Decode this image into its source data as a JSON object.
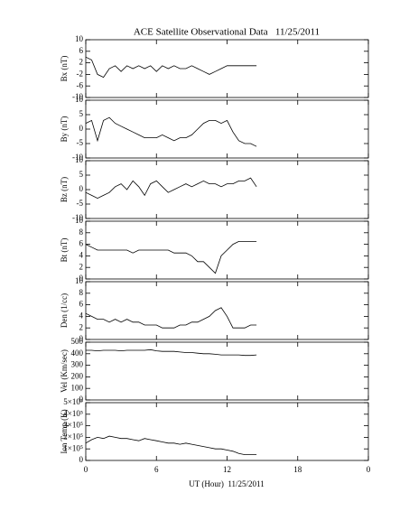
{
  "chart_data": {
    "type": "line",
    "title": "ACE Satellite Observational Data   11/25/2011",
    "xlabel": "UT (Hour)  11/25/2011",
    "color": "#000000",
    "x": [
      0,
      0.5,
      1,
      1.5,
      2,
      2.5,
      3,
      3.5,
      4,
      4.5,
      5,
      5.5,
      6,
      6.5,
      7,
      7.5,
      8,
      8.5,
      9,
      9.5,
      10,
      10.5,
      11,
      11.5,
      12,
      12.5,
      13,
      13.5,
      14,
      14.5
    ],
    "xlim": [
      0,
      24
    ],
    "xticks": [
      0,
      6,
      12,
      18,
      {
        "value": 24,
        "label": "0"
      }
    ],
    "panels": [
      {
        "ylabel": "Bx (nT)",
        "ylim": [
          -10,
          10
        ],
        "yticks": [
          -10,
          -6,
          -2,
          2,
          6,
          10
        ],
        "values": [
          4,
          3,
          -2,
          -3,
          0,
          1,
          -1,
          1,
          0,
          1,
          0,
          1,
          -1,
          1,
          0,
          1,
          0,
          0,
          1,
          0,
          -1,
          -2,
          -1,
          0,
          1,
          1,
          1,
          1,
          1,
          1
        ]
      },
      {
        "ylabel": "By (nT)",
        "ylim": [
          -10,
          10
        ],
        "yticks": [
          -10,
          -5,
          0,
          5,
          10
        ],
        "values": [
          2,
          3,
          -4,
          3,
          4,
          2,
          1,
          0,
          -1,
          -2,
          -3,
          -3,
          -3,
          -2,
          -3,
          -4,
          -3,
          -3,
          -2,
          0,
          2,
          3,
          3,
          2,
          3,
          -1,
          -4,
          -5,
          -5,
          -6
        ]
      },
      {
        "ylabel": "Bz (nT)",
        "ylim": [
          -10,
          10
        ],
        "yticks": [
          -10,
          -5,
          0,
          5,
          10
        ],
        "values": [
          -1,
          -2,
          -3,
          -2,
          -1,
          1,
          2,
          0,
          3,
          1,
          -2,
          2,
          3,
          1,
          -1,
          0,
          1,
          2,
          1,
          2,
          3,
          2,
          2,
          1,
          2,
          2,
          3,
          3,
          4,
          1
        ]
      },
      {
        "ylabel": "Bt (nT)",
        "ylim": [
          0,
          10
        ],
        "yticks": [
          0,
          2,
          4,
          6,
          8,
          10
        ],
        "values": [
          6,
          5.5,
          5,
          5,
          5,
          5,
          5,
          5,
          4.5,
          5,
          5,
          5,
          5,
          5,
          5,
          4.5,
          4.5,
          4.5,
          4,
          3,
          3,
          2,
          1,
          4,
          5,
          6,
          6.5,
          6.5,
          6.5,
          6.5
        ]
      },
      {
        "ylabel": "Den (1/cc)",
        "ylim": [
          0,
          10
        ],
        "yticks": [
          0,
          2,
          4,
          6,
          8,
          10
        ],
        "values": [
          4.5,
          4,
          3.5,
          3.5,
          3,
          3.5,
          3,
          3.5,
          3,
          3,
          2.5,
          2.5,
          2.5,
          2,
          2,
          2,
          2.5,
          2.5,
          3,
          3,
          3.5,
          4,
          5,
          5.5,
          4,
          2,
          2,
          2,
          2.5,
          2.5
        ]
      },
      {
        "ylabel": "Vel (Km/sec)",
        "ylim": [
          0,
          500
        ],
        "yticks": [
          0,
          100,
          200,
          300,
          400,
          500
        ],
        "values": [
          430,
          430,
          425,
          430,
          430,
          430,
          425,
          430,
          430,
          430,
          430,
          435,
          425,
          420,
          420,
          420,
          415,
          410,
          410,
          405,
          400,
          400,
          395,
          390,
          390,
          390,
          390,
          385,
          385,
          390
        ]
      },
      {
        "ylabel": "Ion Temp (K)",
        "ylim": [
          0,
          500000
        ],
        "yticks": [
          0,
          {
            "value": 100000,
            "label": "1×10⁵"
          },
          {
            "value": 200000,
            "label": "2×10⁵"
          },
          {
            "value": 300000,
            "label": "3×10⁵"
          },
          {
            "value": 400000,
            "label": "4×10⁵"
          },
          {
            "value": 500000,
            "label": "5×10⁵"
          }
        ],
        "values": [
          150000,
          180000,
          200000,
          190000,
          210000,
          200000,
          190000,
          190000,
          180000,
          170000,
          190000,
          180000,
          170000,
          160000,
          150000,
          150000,
          140000,
          150000,
          140000,
          130000,
          120000,
          110000,
          100000,
          100000,
          90000,
          80000,
          60000,
          50000,
          50000,
          50000
        ]
      }
    ]
  }
}
